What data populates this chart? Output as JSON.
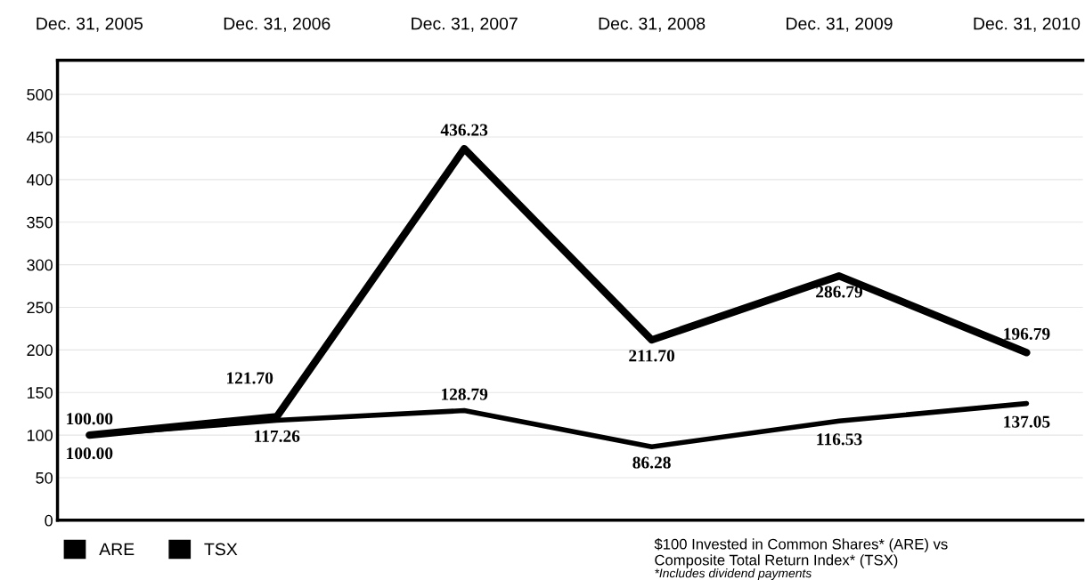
{
  "chart_data": {
    "type": "line",
    "categories": [
      "Dec. 31, 2005",
      "Dec. 31, 2006",
      "Dec. 31, 2007",
      "Dec. 31, 2008",
      "Dec. 31, 2009",
      "Dec. 31, 2010"
    ],
    "series": [
      {
        "name": "ARE",
        "color": "#000000",
        "values": [
          100.0,
          121.7,
          436.23,
          211.7,
          286.79,
          196.79
        ],
        "value_labels": [
          "100.00",
          "121.70",
          "436.23",
          "211.70",
          "286.79",
          "196.79"
        ]
      },
      {
        "name": "TSX",
        "color": "#000000",
        "values": [
          100.0,
          117.26,
          128.79,
          86.28,
          116.53,
          137.05
        ],
        "value_labels": [
          "100.00",
          "117.26",
          "128.79",
          "86.28",
          "116.53",
          "137.05"
        ]
      }
    ],
    "ylim": [
      0,
      540
    ],
    "yticks": [
      0,
      50,
      100,
      150,
      200,
      250,
      300,
      350,
      400,
      450,
      500
    ],
    "grid": "y",
    "legend": "bottom left",
    "marker": "none",
    "line_style": "solid",
    "annotations": [
      "$100 Invested in Common Shares* (ARE) vs\nComposite Total Return Index* (TSX)",
      "*Includes dividend payments"
    ]
  }
}
